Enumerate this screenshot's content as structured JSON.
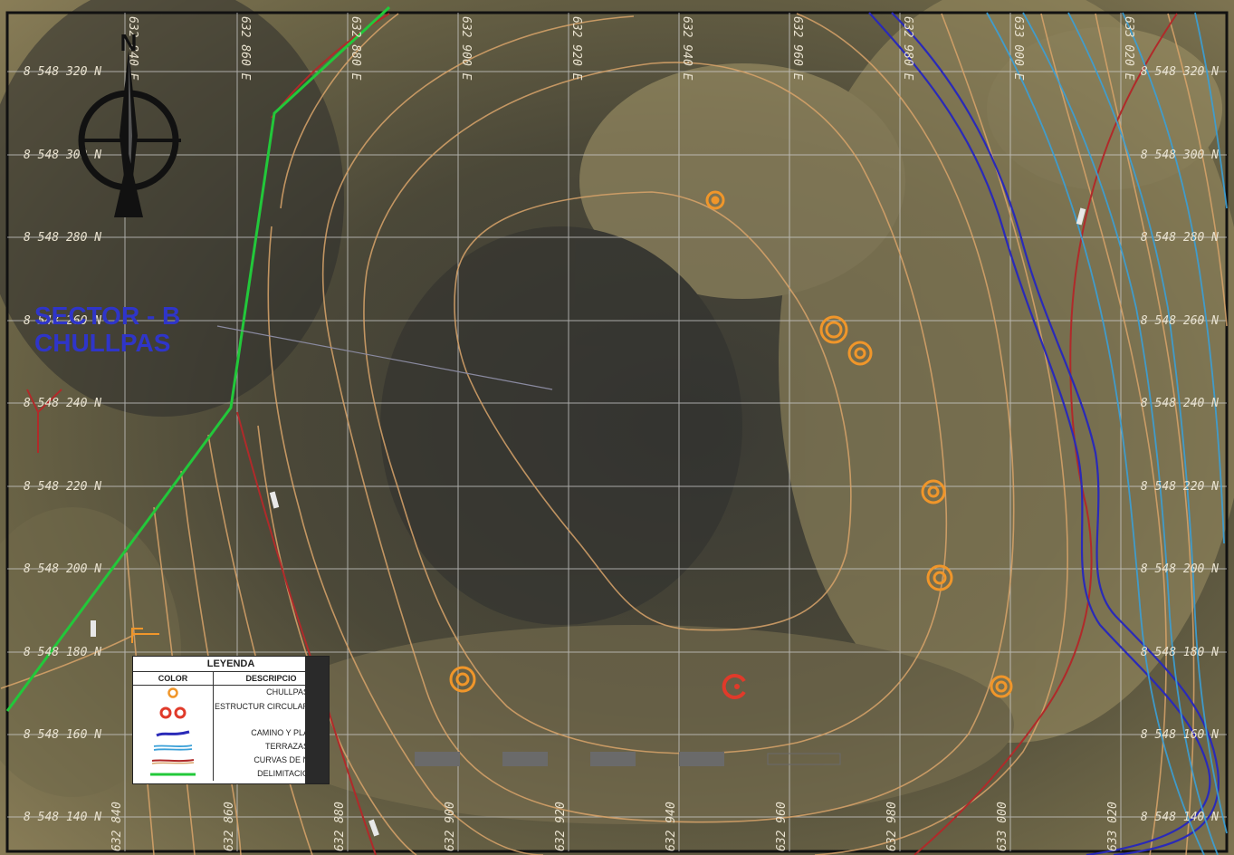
{
  "map": {
    "sector_label_line1": "SECTOR - B",
    "sector_label_line2": "CHULLPAS",
    "north_label": "N",
    "easting_labels_top": [
      "632 840 E",
      "632 860 E",
      "632 880 E",
      "632 900 E",
      "632 920 E",
      "632 940 E",
      "632 960 E",
      "632 980 E",
      "633 000 E",
      "633 020 E"
    ],
    "easting_labels_bottom": [
      "632 840",
      "632 860",
      "632 880",
      "632 900",
      "632 920",
      "632 940",
      "632 960",
      "632 980",
      "633 000",
      "633 020"
    ],
    "northing_labels_left": [
      "8 548 320 N",
      "8 548 300 N",
      "8 548 280 N",
      "8 548 260 N",
      "8 548 240 N",
      "8 548 220 N",
      "8 548 200 N",
      "8 548 180 N",
      "8 548 160 N",
      "8 548 140 N"
    ],
    "northing_labels_right": [
      "8 548 320 N",
      "8 548 300 N",
      "8 548 280 N",
      "8 548 260 N",
      "8 548 240 N",
      "8 548 220 N",
      "8 548 200 N",
      "8 548 180 N",
      "8 548 160 N",
      "8 548 140 N"
    ],
    "colors": {
      "contour": "#d9a46a",
      "chullpa": "#f0962a",
      "circular_structure": "#e03a2a",
      "road": "#2a2ab8",
      "terraces": "#3aa0d8",
      "contour_index": "#b02a2a",
      "delimitation": "#22c83a",
      "grid": "#c9c9c9"
    }
  },
  "legend": {
    "title": "LEYENDA",
    "col_color": "COLOR",
    "col_desc": "DESCRIPCIO",
    "items": [
      {
        "symbol": "chullpa-symbol",
        "label": "CHULLPAS"
      },
      {
        "symbol": "circular-structure-symbol",
        "label": "ESTRUCTUR CIRCULAR"
      },
      {
        "symbol": "road-symbol",
        "label": "CAMINO Y PLA"
      },
      {
        "symbol": "terrace-symbol",
        "label": "TERRAZAS"
      },
      {
        "symbol": "contour-symbol",
        "label": "CURVAS DE N"
      },
      {
        "symbol": "delimitation-symbol",
        "label": "DELIMITACIO"
      }
    ]
  }
}
